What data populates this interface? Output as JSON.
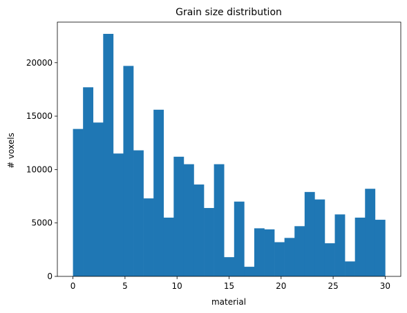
{
  "chart_data": {
    "type": "bar",
    "title": "Grain size distribution",
    "xlabel": "material",
    "ylabel": "# voxels",
    "xlim": [
      -1.5,
      31.5
    ],
    "ylim": [
      0,
      23800
    ],
    "x_ticks": [
      0,
      5,
      10,
      15,
      20,
      25,
      30
    ],
    "y_ticks": [
      0,
      5000,
      10000,
      15000,
      20000
    ],
    "bin_edges_range": [
      0,
      30
    ],
    "bin_count": 31,
    "values": [
      13800,
      17700,
      14400,
      22700,
      11500,
      19700,
      11800,
      7300,
      15600,
      5500,
      11200,
      10500,
      8600,
      6400,
      10500,
      1800,
      7000,
      900,
      4500,
      4400,
      3200,
      3600,
      4700,
      7900,
      7200,
      3100,
      5800,
      1400,
      5500,
      8200,
      5300
    ],
    "bar_color": "#1f77b4",
    "grid": false,
    "legend": "none"
  }
}
